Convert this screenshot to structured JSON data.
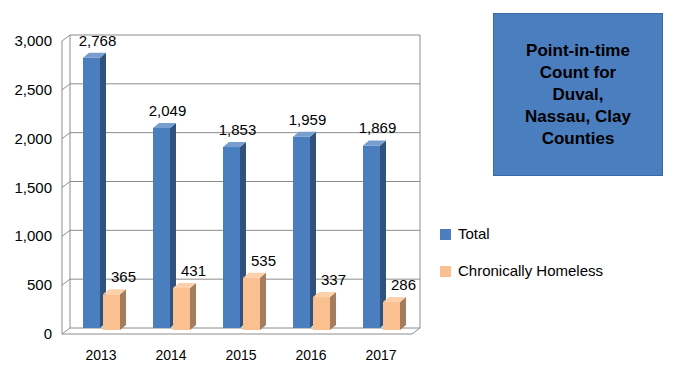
{
  "chart_data": {
    "type": "bar",
    "title": "Point-in-time Count for Duval, Nassau, Clay Counties",
    "categories": [
      "2013",
      "2014",
      "2015",
      "2016",
      "2017"
    ],
    "series": [
      {
        "name": "Total",
        "color": "#4a7ebf",
        "values": [
          2768,
          2049,
          1853,
          1959,
          1869
        ],
        "value_labels": [
          "2,768",
          "2,049",
          "1,853",
          "1,959",
          "1,869"
        ]
      },
      {
        "name": "Chronically Homeless",
        "color": "#fac08f",
        "values": [
          365,
          431,
          535,
          337,
          286
        ]
      }
    ],
    "ylim": [
      0,
      3000
    ],
    "yticks": [
      0,
      500,
      {
        "value": 1000,
        "label": "1,000"
      },
      {
        "value": 1500,
        "label": "1,500"
      },
      {
        "value": 2000,
        "label": "2,000"
      },
      {
        "value": 2500,
        "label": "2,500"
      },
      {
        "value": 3000,
        "label": "3,000"
      }
    ],
    "grid": true,
    "legend": "right",
    "data_labels": true
  }
}
